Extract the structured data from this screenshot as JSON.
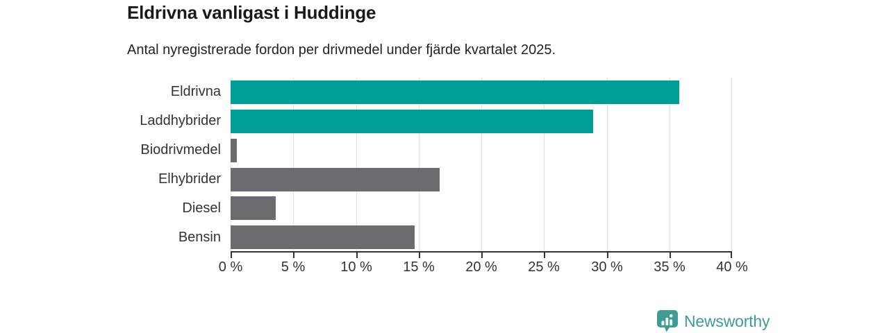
{
  "header": {
    "title": "Eldrivna vanligast i Huddinge",
    "subtitle": "Antal nyregistrerade fordon per drivmedel under fjärde kvartalet 2025."
  },
  "chart_data": {
    "type": "bar",
    "orientation": "horizontal",
    "title": "Eldrivna vanligast i Huddinge",
    "subtitle": "Antal nyregistrerade fordon per drivmedel under fjärde kvartalet 2025.",
    "categories": [
      "Eldrivna",
      "Laddhybrider",
      "Biodrivmedel",
      "Elhybrider",
      "Diesel",
      "Bensin"
    ],
    "values": [
      35.8,
      28.9,
      0.5,
      16.7,
      3.6,
      14.7
    ],
    "bar_colors_hex": [
      "#009E96",
      "#009E96",
      "#6C6C70",
      "#6C6C70",
      "#6C6C70",
      "#6C6C70"
    ],
    "xlabel": "",
    "ylabel": "",
    "xlim": [
      0,
      40
    ],
    "x_tick_values": [
      0,
      5,
      10,
      15,
      20,
      25,
      30,
      35,
      40
    ],
    "x_tick_labels": [
      "0 %",
      "5 %",
      "10 %",
      "15 %",
      "20 %",
      "25 %",
      "30 %",
      "35 %",
      "40 %"
    ],
    "grid": "vertical",
    "legend": "none"
  },
  "colors": {
    "bar_teal": "#009E96",
    "bar_gray": "#6C6C70",
    "axis": "#333333",
    "grid": "#e0e0e0",
    "title_text": "#1a1a1a",
    "body_text": "#333333",
    "brand_teal": "#3E9C95"
  },
  "footer": {
    "brand": "Newsworthy",
    "logo_icon": "newsworthy-pin-chart-icon"
  }
}
